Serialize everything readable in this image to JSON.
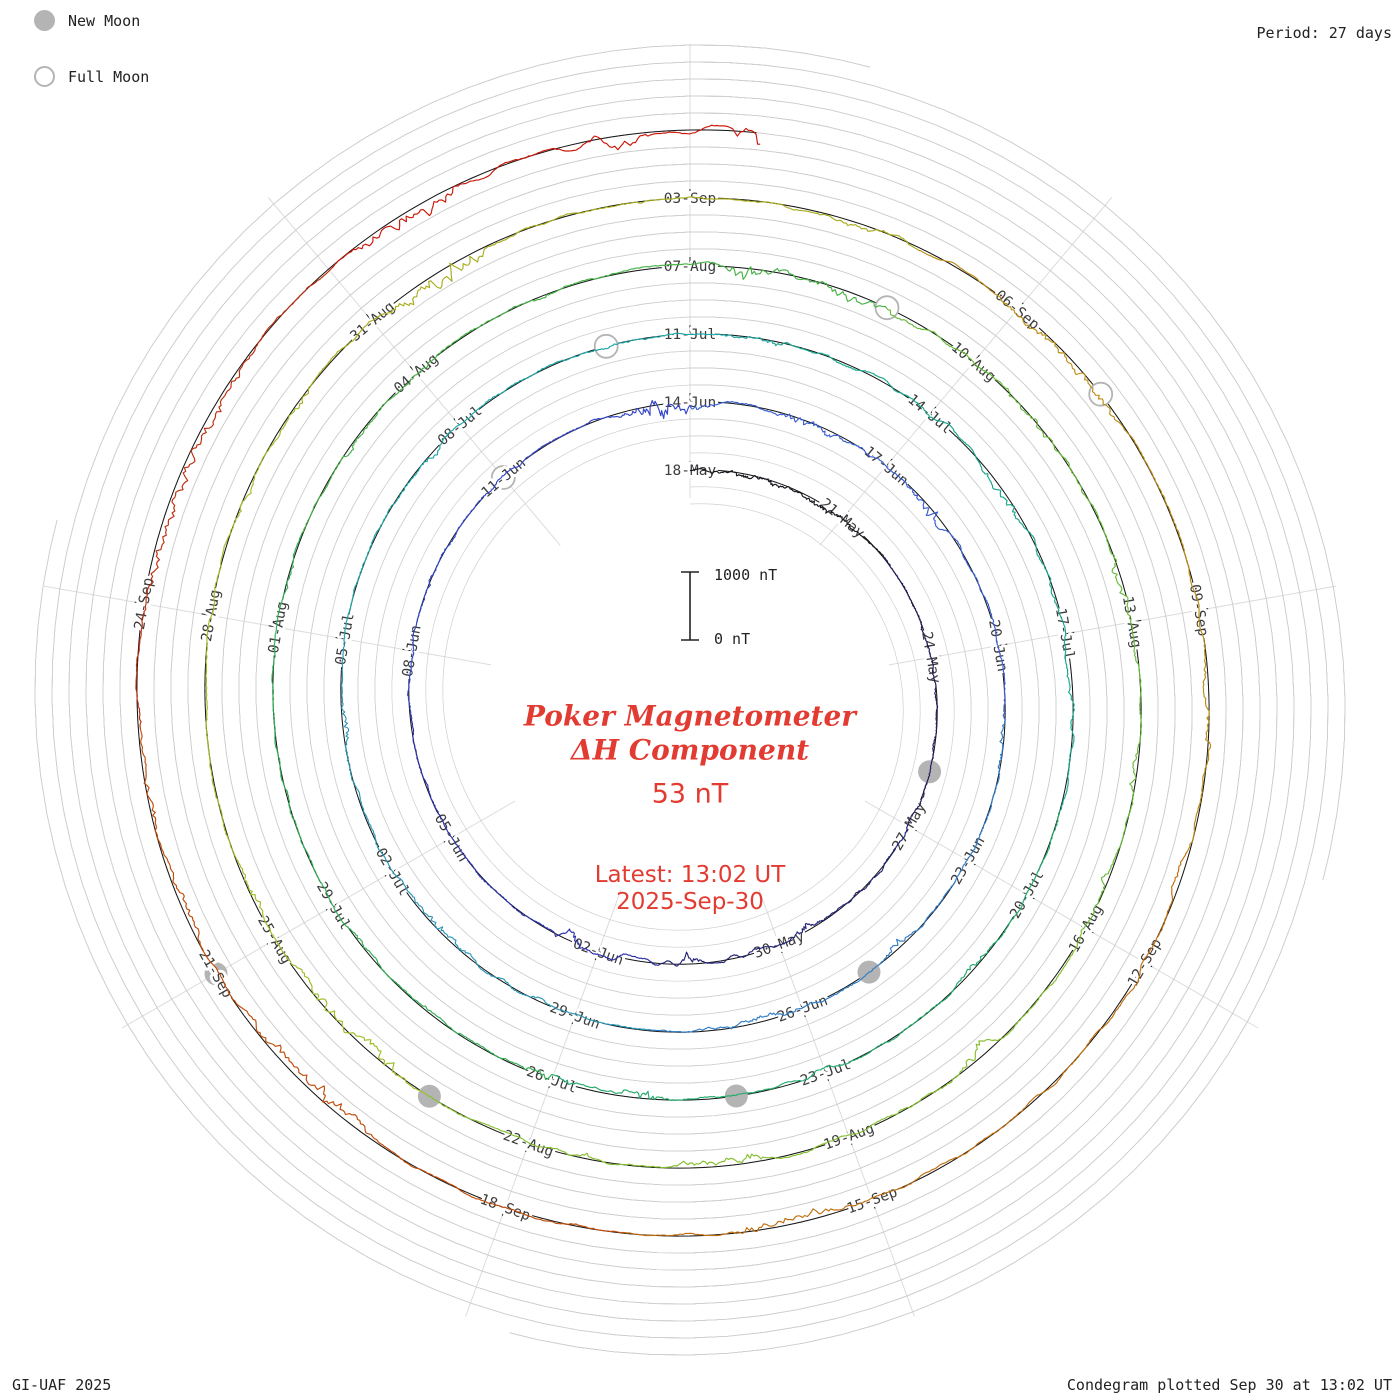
{
  "page": {
    "legend": {
      "new_moon_label": "New Moon",
      "full_moon_label": "Full Moon"
    },
    "period_label": "Period: 27 days",
    "credit": "GI-UAF 2025",
    "footer": "Condegram plotted Sep 30 at 13:02 UT"
  },
  "center": {
    "title_line1": "Poker Magnetometer",
    "title_line2": "ΔH Component",
    "current_value": "53 nT",
    "latest_line1": "Latest: 13:02 UT",
    "latest_line2": "2025-Sep-30",
    "scale_top_label": "1000 nT",
    "scale_bottom_label": "0 nT"
  },
  "chart_data": {
    "type": "line",
    "layout": "polar spiral condegram, clockwise from top, one revolution = 27 days, radius grows outward with time",
    "title": "Poker Magnetometer ΔH Component",
    "station": "Poker Magnetometer",
    "component": "ΔH",
    "latest_value_nT": 53,
    "latest_time": "2025-Sep-30 13:02 UT",
    "period_days": 27,
    "start_date": "2025-05-18",
    "end_day_offset": 135.54,
    "nT_per_revolution_scale": 1000,
    "scale_bar": {
      "top": "1000 nT",
      "bottom": "0 nT"
    },
    "accent_color": "#e23b32",
    "date_labels": [
      {
        "day": 0,
        "label": "18-May"
      },
      {
        "day": 3,
        "label": "21-May"
      },
      {
        "day": 6,
        "label": "24-May"
      },
      {
        "day": 9,
        "label": "27-May"
      },
      {
        "day": 12,
        "label": "30-May"
      },
      {
        "day": 15,
        "label": "02-Jun"
      },
      {
        "day": 18,
        "label": "05-Jun"
      },
      {
        "day": 21,
        "label": "08-Jun"
      },
      {
        "day": 24,
        "label": "11-Jun"
      },
      {
        "day": 27,
        "label": "14-Jun"
      },
      {
        "day": 30,
        "label": "17-Jun"
      },
      {
        "day": 33,
        "label": "20-Jun"
      },
      {
        "day": 36,
        "label": "23-Jun"
      },
      {
        "day": 39,
        "label": "26-Jun"
      },
      {
        "day": 42,
        "label": "29-Jun"
      },
      {
        "day": 45,
        "label": "02-Jul"
      },
      {
        "day": 48,
        "label": "05-Jul"
      },
      {
        "day": 51,
        "label": "08-Jul"
      },
      {
        "day": 54,
        "label": "11-Jul"
      },
      {
        "day": 57,
        "label": "14-Jul"
      },
      {
        "day": 60,
        "label": "17-Jul"
      },
      {
        "day": 63,
        "label": "20-Jul"
      },
      {
        "day": 66,
        "label": "23-Jul"
      },
      {
        "day": 69,
        "label": "26-Jul"
      },
      {
        "day": 72,
        "label": "29-Jul"
      },
      {
        "day": 75,
        "label": "01-Aug"
      },
      {
        "day": 78,
        "label": "04-Aug"
      },
      {
        "day": 81,
        "label": "07-Aug"
      },
      {
        "day": 84,
        "label": "10-Aug"
      },
      {
        "day": 87,
        "label": "13-Aug"
      },
      {
        "day": 90,
        "label": "16-Aug"
      },
      {
        "day": 93,
        "label": "19-Aug"
      },
      {
        "day": 96,
        "label": "22-Aug"
      },
      {
        "day": 99,
        "label": "25-Aug"
      },
      {
        "day": 102,
        "label": "28-Aug"
      },
      {
        "day": 105,
        "label": "31-Aug"
      },
      {
        "day": 108,
        "label": "03-Sep"
      },
      {
        "day": 111,
        "label": "06-Sep"
      },
      {
        "day": 114,
        "label": "09-Sep"
      },
      {
        "day": 117,
        "label": "12-Sep"
      },
      {
        "day": 120,
        "label": "15-Sep"
      },
      {
        "day": 123,
        "label": "18-Sep"
      },
      {
        "day": 126,
        "label": "21-Sep"
      },
      {
        "day": 129,
        "label": "24-Sep"
      }
    ],
    "new_moon_dates": [
      "2025-05-26",
      "2025-06-25",
      "2025-07-24",
      "2025-08-23",
      "2025-09-21"
    ],
    "full_moon_dates": [
      "2025-06-11",
      "2025-07-10",
      "2025-08-09",
      "2025-09-07"
    ],
    "new_moon_days": [
      8,
      38,
      67,
      97,
      126
    ],
    "full_moon_days": [
      24,
      53,
      83,
      112
    ],
    "color_stops": [
      {
        "until_day": 4,
        "color": "#15151e"
      },
      {
        "until_day": 9,
        "color": "#1d1d5a"
      },
      {
        "until_day": 14,
        "color": "#232378"
      },
      {
        "until_day": 20,
        "color": "#2a2fa8"
      },
      {
        "until_day": 27,
        "color": "#3246c8"
      },
      {
        "until_day": 34,
        "color": "#3a5fd2"
      },
      {
        "until_day": 41,
        "color": "#2f7cc8"
      },
      {
        "until_day": 48,
        "color": "#2b97b6"
      },
      {
        "until_day": 55,
        "color": "#1ea6a6"
      },
      {
        "until_day": 62,
        "color": "#18a68c"
      },
      {
        "until_day": 69,
        "color": "#23aa6c"
      },
      {
        "until_day": 76,
        "color": "#30ae53"
      },
      {
        "until_day": 83,
        "color": "#47b246"
      },
      {
        "until_day": 90,
        "color": "#67ba39"
      },
      {
        "until_day": 97,
        "color": "#85be2e"
      },
      {
        "until_day": 104,
        "color": "#9cbe25"
      },
      {
        "until_day": 110,
        "color": "#a8ad1d"
      },
      {
        "until_day": 116,
        "color": "#bb8c14"
      },
      {
        "until_day": 122,
        "color": "#c06d0e"
      },
      {
        "until_day": 128,
        "color": "#c04c0a"
      },
      {
        "until_day": 132,
        "color": "#bf2d0d"
      },
      {
        "until_day": 136,
        "color": "#cb1507"
      }
    ],
    "daily_activity_nT": [
      140,
      90,
      70,
      120,
      80,
      60,
      90,
      110,
      70,
      130,
      160,
      120,
      200,
      260,
      420,
      380,
      220,
      140,
      100,
      90,
      120,
      150,
      110,
      90,
      140,
      180,
      300,
      240,
      160,
      120,
      150,
      220,
      180,
      130,
      100,
      90,
      120,
      160,
      200,
      170,
      130,
      110,
      160,
      220,
      260,
      200,
      150,
      120,
      100,
      90,
      110,
      140,
      100,
      80,
      110,
      160,
      240,
      280,
      320,
      260,
      300,
      220,
      160,
      130,
      110,
      140,
      180,
      240,
      190,
      140,
      110,
      90,
      110,
      140,
      120,
      100,
      120,
      160,
      130,
      110,
      140,
      180,
      420,
      380,
      260,
      200,
      160,
      220,
      180,
      140,
      160,
      200,
      170,
      220,
      180,
      140,
      260,
      220,
      170,
      140,
      120,
      150,
      130,
      110,
      160,
      300,
      240,
      180,
      140,
      200,
      260,
      220,
      170,
      140,
      180,
      220,
      260,
      300,
      240,
      180,
      200,
      240,
      200,
      160,
      280,
      220,
      180,
      150,
      130,
      160,
      200,
      170,
      220,
      280,
      480,
      560
    ]
  }
}
